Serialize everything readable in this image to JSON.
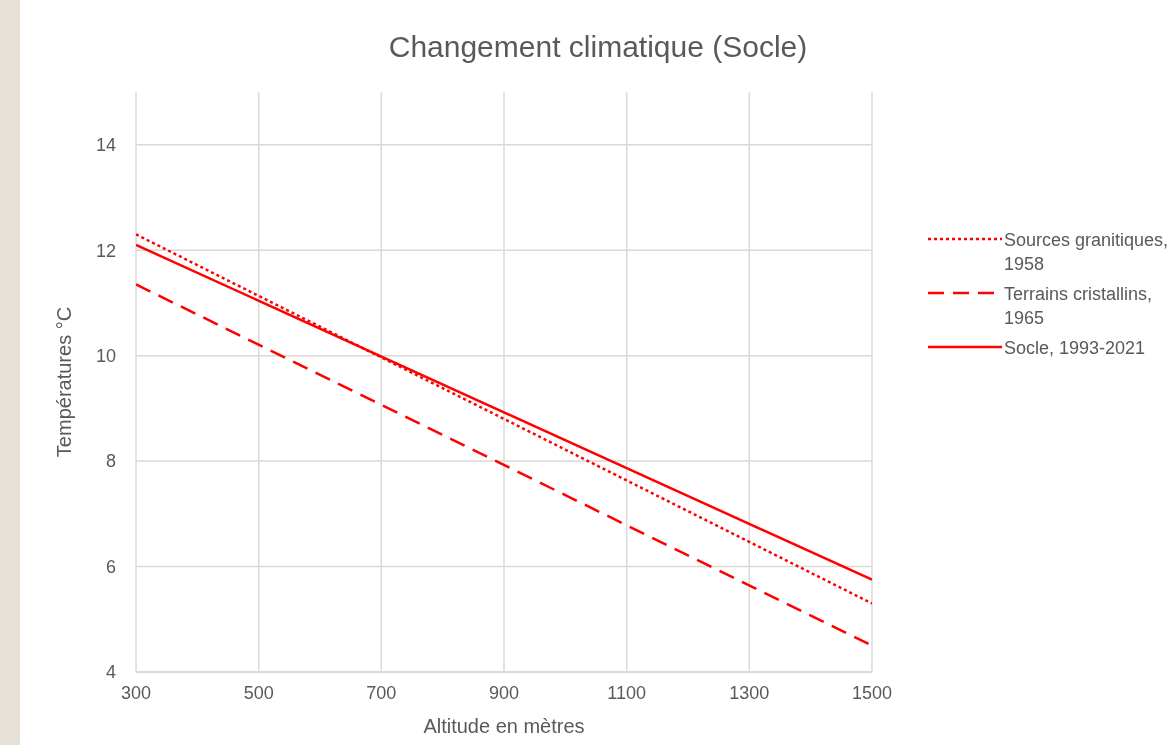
{
  "chart_data": {
    "type": "line",
    "title": "Changement climatique (Socle)",
    "xlabel": "Altitude en mètres",
    "ylabel": "Températures °C",
    "x": [
      300,
      1500
    ],
    "xlim": [
      300,
      1500
    ],
    "xticks": [
      300,
      500,
      700,
      900,
      1100,
      1300,
      1500
    ],
    "ylim": [
      4,
      15
    ],
    "yticks": [
      4,
      6,
      8,
      10,
      12,
      14
    ],
    "grid": true,
    "legend": "right",
    "marker": "none",
    "series": [
      {
        "name": "Sources granitiques, 1958",
        "color": "#ff0000",
        "line_style": "dotted",
        "values": [
          12.3,
          5.3
        ]
      },
      {
        "name": "Terrains cristallins, 1965",
        "color": "#ff0000",
        "line_style": "dashed",
        "values": [
          11.35,
          4.5
        ]
      },
      {
        "name": "Socle, 1993-2021",
        "color": "#ff0000",
        "line_style": "solid",
        "values": [
          12.1,
          5.75
        ]
      }
    ]
  }
}
